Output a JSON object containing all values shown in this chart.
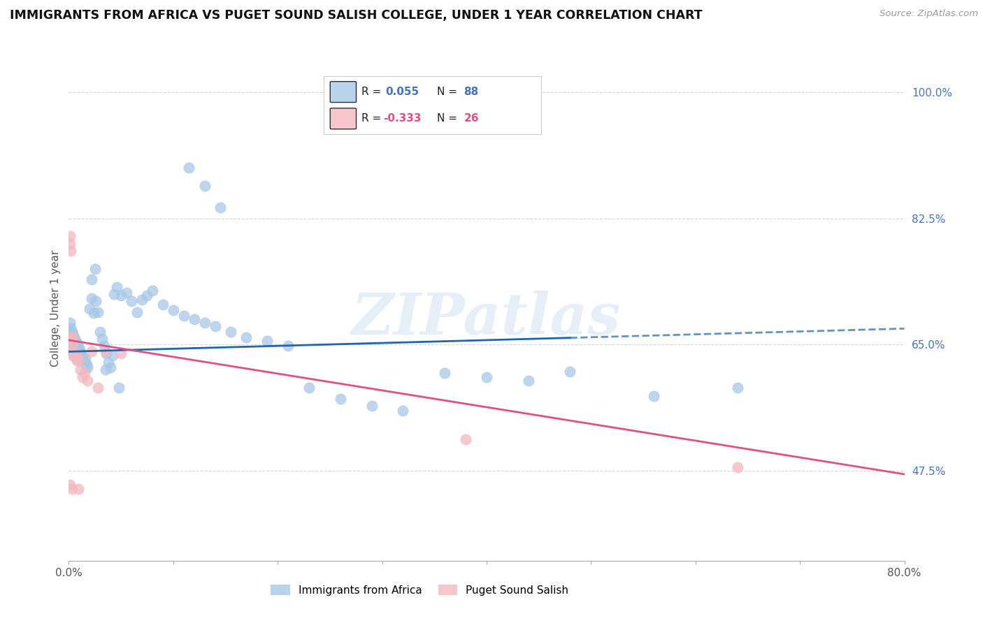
{
  "title": "IMMIGRANTS FROM AFRICA VS PUGET SOUND SALISH COLLEGE, UNDER 1 YEAR CORRELATION CHART",
  "source": "Source: ZipAtlas.com",
  "ylabel": "College, Under 1 year",
  "xlim": [
    0.0,
    0.8
  ],
  "ylim": [
    0.35,
    1.05
  ],
  "xticks": [
    0.0,
    0.1,
    0.2,
    0.3,
    0.4,
    0.5,
    0.6,
    0.7,
    0.8
  ],
  "xticklabels": [
    "0.0%",
    "",
    "",
    "",
    "",
    "",
    "",
    "",
    "80.0%"
  ],
  "yticks_right": [
    0.475,
    0.65,
    0.825,
    1.0
  ],
  "ytick_right_labels": [
    "47.5%",
    "65.0%",
    "82.5%",
    "100.0%"
  ],
  "blue_color": "#a8c8e8",
  "pink_color": "#f4b8c0",
  "blue_line_color": "#2166ac",
  "pink_line_color": "#e05080",
  "watermark": "ZIPatlas",
  "blue_r": "0.055",
  "blue_n": "88",
  "pink_r": "-0.333",
  "pink_n": "26",
  "text_color_rn": "#333333",
  "text_color_val_blue": "#4472c4",
  "text_color_val_pink": "#e05080",
  "blue_line_solid_end_x": 0.48,
  "blue_line_y_start": 0.64,
  "blue_line_y_end": 0.672,
  "pink_line_y_start": 0.656,
  "pink_line_y_end": 0.47,
  "blue_scatter_x": [
    0.001,
    0.001,
    0.001,
    0.002,
    0.002,
    0.002,
    0.002,
    0.003,
    0.003,
    0.003,
    0.003,
    0.004,
    0.004,
    0.004,
    0.004,
    0.005,
    0.005,
    0.005,
    0.006,
    0.006,
    0.006,
    0.007,
    0.007,
    0.007,
    0.008,
    0.008,
    0.008,
    0.009,
    0.009,
    0.01,
    0.01,
    0.011,
    0.012,
    0.012,
    0.013,
    0.014,
    0.015,
    0.016,
    0.017,
    0.018,
    0.02,
    0.022,
    0.024,
    0.026,
    0.028,
    0.03,
    0.032,
    0.034,
    0.036,
    0.038,
    0.04,
    0.043,
    0.046,
    0.05,
    0.055,
    0.06,
    0.065,
    0.07,
    0.075,
    0.08,
    0.09,
    0.1,
    0.11,
    0.12,
    0.13,
    0.14,
    0.155,
    0.17,
    0.19,
    0.21,
    0.23,
    0.26,
    0.29,
    0.32,
    0.36,
    0.4,
    0.44,
    0.48,
    0.56,
    0.64,
    0.115,
    0.13,
    0.145,
    0.035,
    0.042,
    0.048,
    0.022,
    0.025
  ],
  "blue_scatter_y": [
    0.68,
    0.67,
    0.66,
    0.672,
    0.665,
    0.655,
    0.645,
    0.668,
    0.658,
    0.648,
    0.64,
    0.665,
    0.655,
    0.643,
    0.635,
    0.66,
    0.65,
    0.638,
    0.657,
    0.647,
    0.637,
    0.654,
    0.644,
    0.634,
    0.65,
    0.64,
    0.63,
    0.647,
    0.638,
    0.644,
    0.634,
    0.64,
    0.636,
    0.626,
    0.632,
    0.628,
    0.625,
    0.631,
    0.622,
    0.618,
    0.7,
    0.714,
    0.694,
    0.71,
    0.695,
    0.668,
    0.658,
    0.648,
    0.638,
    0.625,
    0.618,
    0.72,
    0.73,
    0.718,
    0.722,
    0.71,
    0.695,
    0.712,
    0.718,
    0.725,
    0.705,
    0.698,
    0.69,
    0.685,
    0.68,
    0.675,
    0.668,
    0.66,
    0.655,
    0.648,
    0.59,
    0.575,
    0.565,
    0.558,
    0.61,
    0.605,
    0.6,
    0.612,
    0.578,
    0.59,
    0.895,
    0.87,
    0.84,
    0.615,
    0.635,
    0.59,
    0.74,
    0.755
  ],
  "pink_scatter_x": [
    0.001,
    0.001,
    0.002,
    0.002,
    0.003,
    0.003,
    0.004,
    0.004,
    0.005,
    0.006,
    0.007,
    0.008,
    0.009,
    0.01,
    0.011,
    0.013,
    0.015,
    0.018,
    0.022,
    0.028,
    0.035,
    0.05,
    0.38,
    0.64,
    0.001,
    0.003
  ],
  "pink_scatter_y": [
    0.8,
    0.79,
    0.78,
    0.66,
    0.66,
    0.65,
    0.66,
    0.64,
    0.638,
    0.635,
    0.635,
    0.628,
    0.45,
    0.63,
    0.615,
    0.605,
    0.61,
    0.6,
    0.64,
    0.59,
    0.64,
    0.638,
    0.518,
    0.48,
    0.455,
    0.45
  ],
  "dot_size": 120
}
